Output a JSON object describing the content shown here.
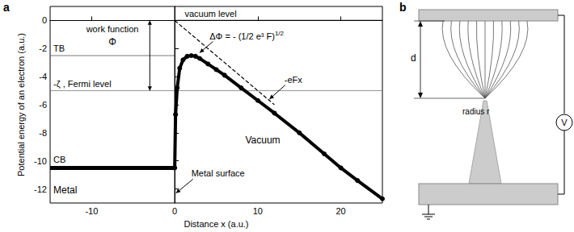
{
  "chart_data": {
    "type": "line",
    "panel_label": "a",
    "x_label": "Distance x (a.u.)",
    "y_label": "Potential energy of an electron (a.u.)",
    "xlim": [
      -15,
      25
    ],
    "ylim": [
      -13,
      1
    ],
    "xticks": [
      -10,
      0,
      10,
      20
    ],
    "yticks": [
      -12,
      -10,
      -8,
      -6,
      -4,
      -2,
      0
    ],
    "series": [
      {
        "x": [
          -15,
          0
        ],
        "values": [
          -10.5,
          -10.5
        ],
        "color": "#000000",
        "line_style": "solid"
      },
      {
        "x": [
          0,
          0.1,
          0.3,
          0.6,
          1,
          1.5,
          2,
          2.5,
          3,
          4,
          5,
          6,
          8,
          10,
          12,
          15,
          18,
          20,
          22,
          25
        ],
        "values": [
          -10.5,
          -6.7,
          -4.8,
          -3.4,
          -2.8,
          -2.55,
          -2.5,
          -2.55,
          -2.7,
          -3.1,
          -3.5,
          -3.9,
          -4.8,
          -5.7,
          -6.6,
          -8.0,
          -9.5,
          -10.5,
          -11.4,
          -12.7
        ],
        "color": "#000000",
        "line_style": "solid",
        "marker": "circle"
      },
      {
        "x": [
          0,
          12
        ],
        "values": [
          0,
          -6
        ],
        "color": "#000000",
        "line_style": "dashed"
      }
    ],
    "levels": {
      "vacuum": 0,
      "tb": -2.5,
      "fermi": -5,
      "surface_x": 0
    },
    "annotations": {
      "vacuum_level": "vacuum level",
      "work_function": "work function",
      "phi": "Φ",
      "tb": "TB",
      "fermi": "-ζ , Fermi level",
      "delta_phi": "ΔΦ = - (1/2 e³ F)",
      "delta_phi_exp": "1/2",
      "efx": "-eFx",
      "cb": "CB",
      "metal": "Metal",
      "vacuum": "Vacuum",
      "surface": "Metal surface"
    }
  },
  "diagram": {
    "panel_label": "b",
    "d_label": "d",
    "radius_label": "radius r",
    "meter_label": "V"
  }
}
